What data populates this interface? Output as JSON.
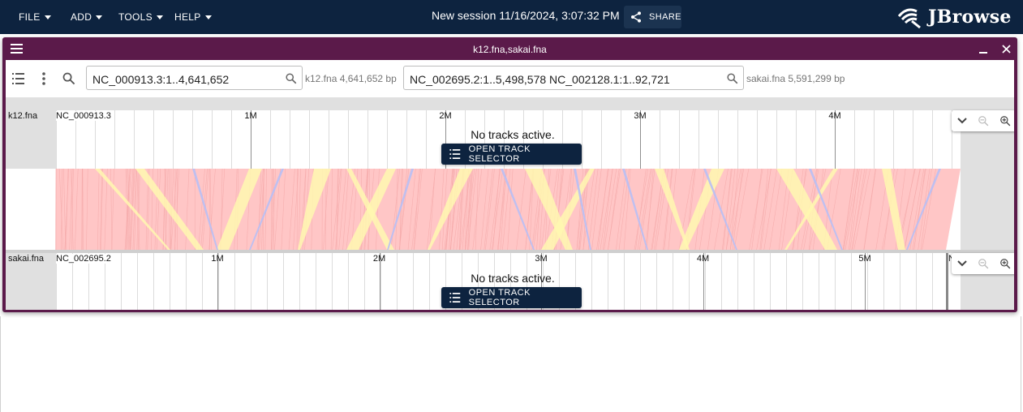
{
  "menu": {
    "file": "FILE",
    "add": "ADD",
    "tools": "TOOLS",
    "help": "HELP"
  },
  "session_title": "New session 11/16/2024, 3:07:32 PM",
  "share_label": "SHARE",
  "logo_text": "JBrowse",
  "view": {
    "title": "k12.fna,sakai.fna"
  },
  "top_view": {
    "locstring": "NC_000913.3:1..4,641,652",
    "assembly_info": "k12.fna 4,641,652 bp",
    "assembly_name": "k12.fna",
    "refname": "NC_000913.3",
    "ticks": [
      "1M",
      "2M",
      "3M",
      "4M"
    ],
    "no_tracks": "No tracks active.",
    "open_selector": "OPEN TRACK SELECTOR"
  },
  "bottom_view": {
    "locstring": "NC_002695.2:1..5,498,578 NC_002128.1:1..92,721",
    "assembly_info": "sakai.fna 5,591,299 bp",
    "assembly_name": "sakai.fna",
    "refname": "NC_002695.2",
    "second_refname_fragment": "N",
    "ticks": [
      "1M",
      "2M",
      "3M",
      "4M",
      "5M"
    ],
    "no_tracks": "No tracks active.",
    "open_selector": "OPEN TRACK SELECTOR"
  },
  "colors": {
    "app_bar": "#0d233f",
    "view_header": "#5b1a4a",
    "synteny_forward": "#ffc0c0",
    "synteny_reverse": "#b8bff5",
    "synteny_inversion": "#fff8b0"
  },
  "icons": {
    "share": "share-icon",
    "search": "search-icon",
    "menu": "hamburger-menu-icon",
    "close": "close-icon",
    "minimize": "minimize-icon",
    "track_list": "track-list-icon",
    "more": "more-vert-icon",
    "chevron": "chevron-down-icon",
    "zoom_out": "zoom-out-icon",
    "zoom_in": "zoom-in-icon"
  }
}
